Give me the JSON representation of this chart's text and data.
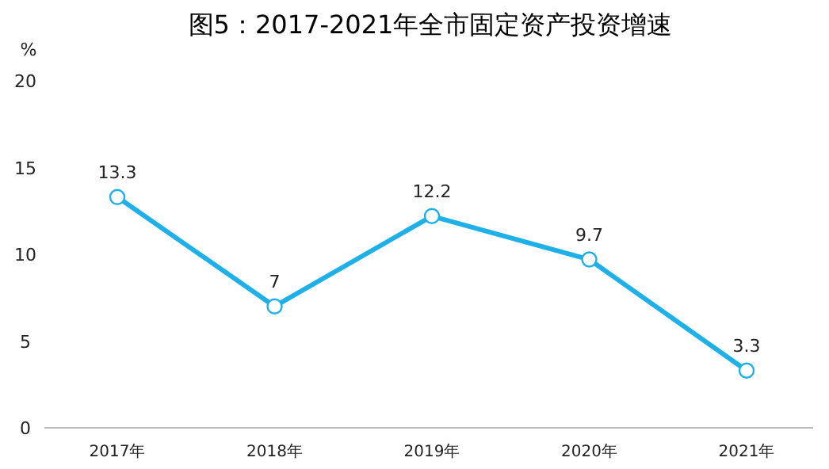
{
  "chart_data": {
    "type": "line",
    "title": "图5：2017-2021年全市固定资产投资增速",
    "ylabel": "%",
    "categories": [
      "2017年",
      "2018年",
      "2019年",
      "2020年",
      "2021年"
    ],
    "series": [
      {
        "color": "#1fb0e8",
        "values": [
          13.3,
          7,
          12.2,
          9.7,
          3.3
        ]
      }
    ],
    "ylim": [
      0,
      20
    ],
    "yticks": [
      0,
      5,
      10,
      15,
      20
    ],
    "grid": false,
    "marker": "circle",
    "line_style": "solid",
    "data_labels": true
  }
}
